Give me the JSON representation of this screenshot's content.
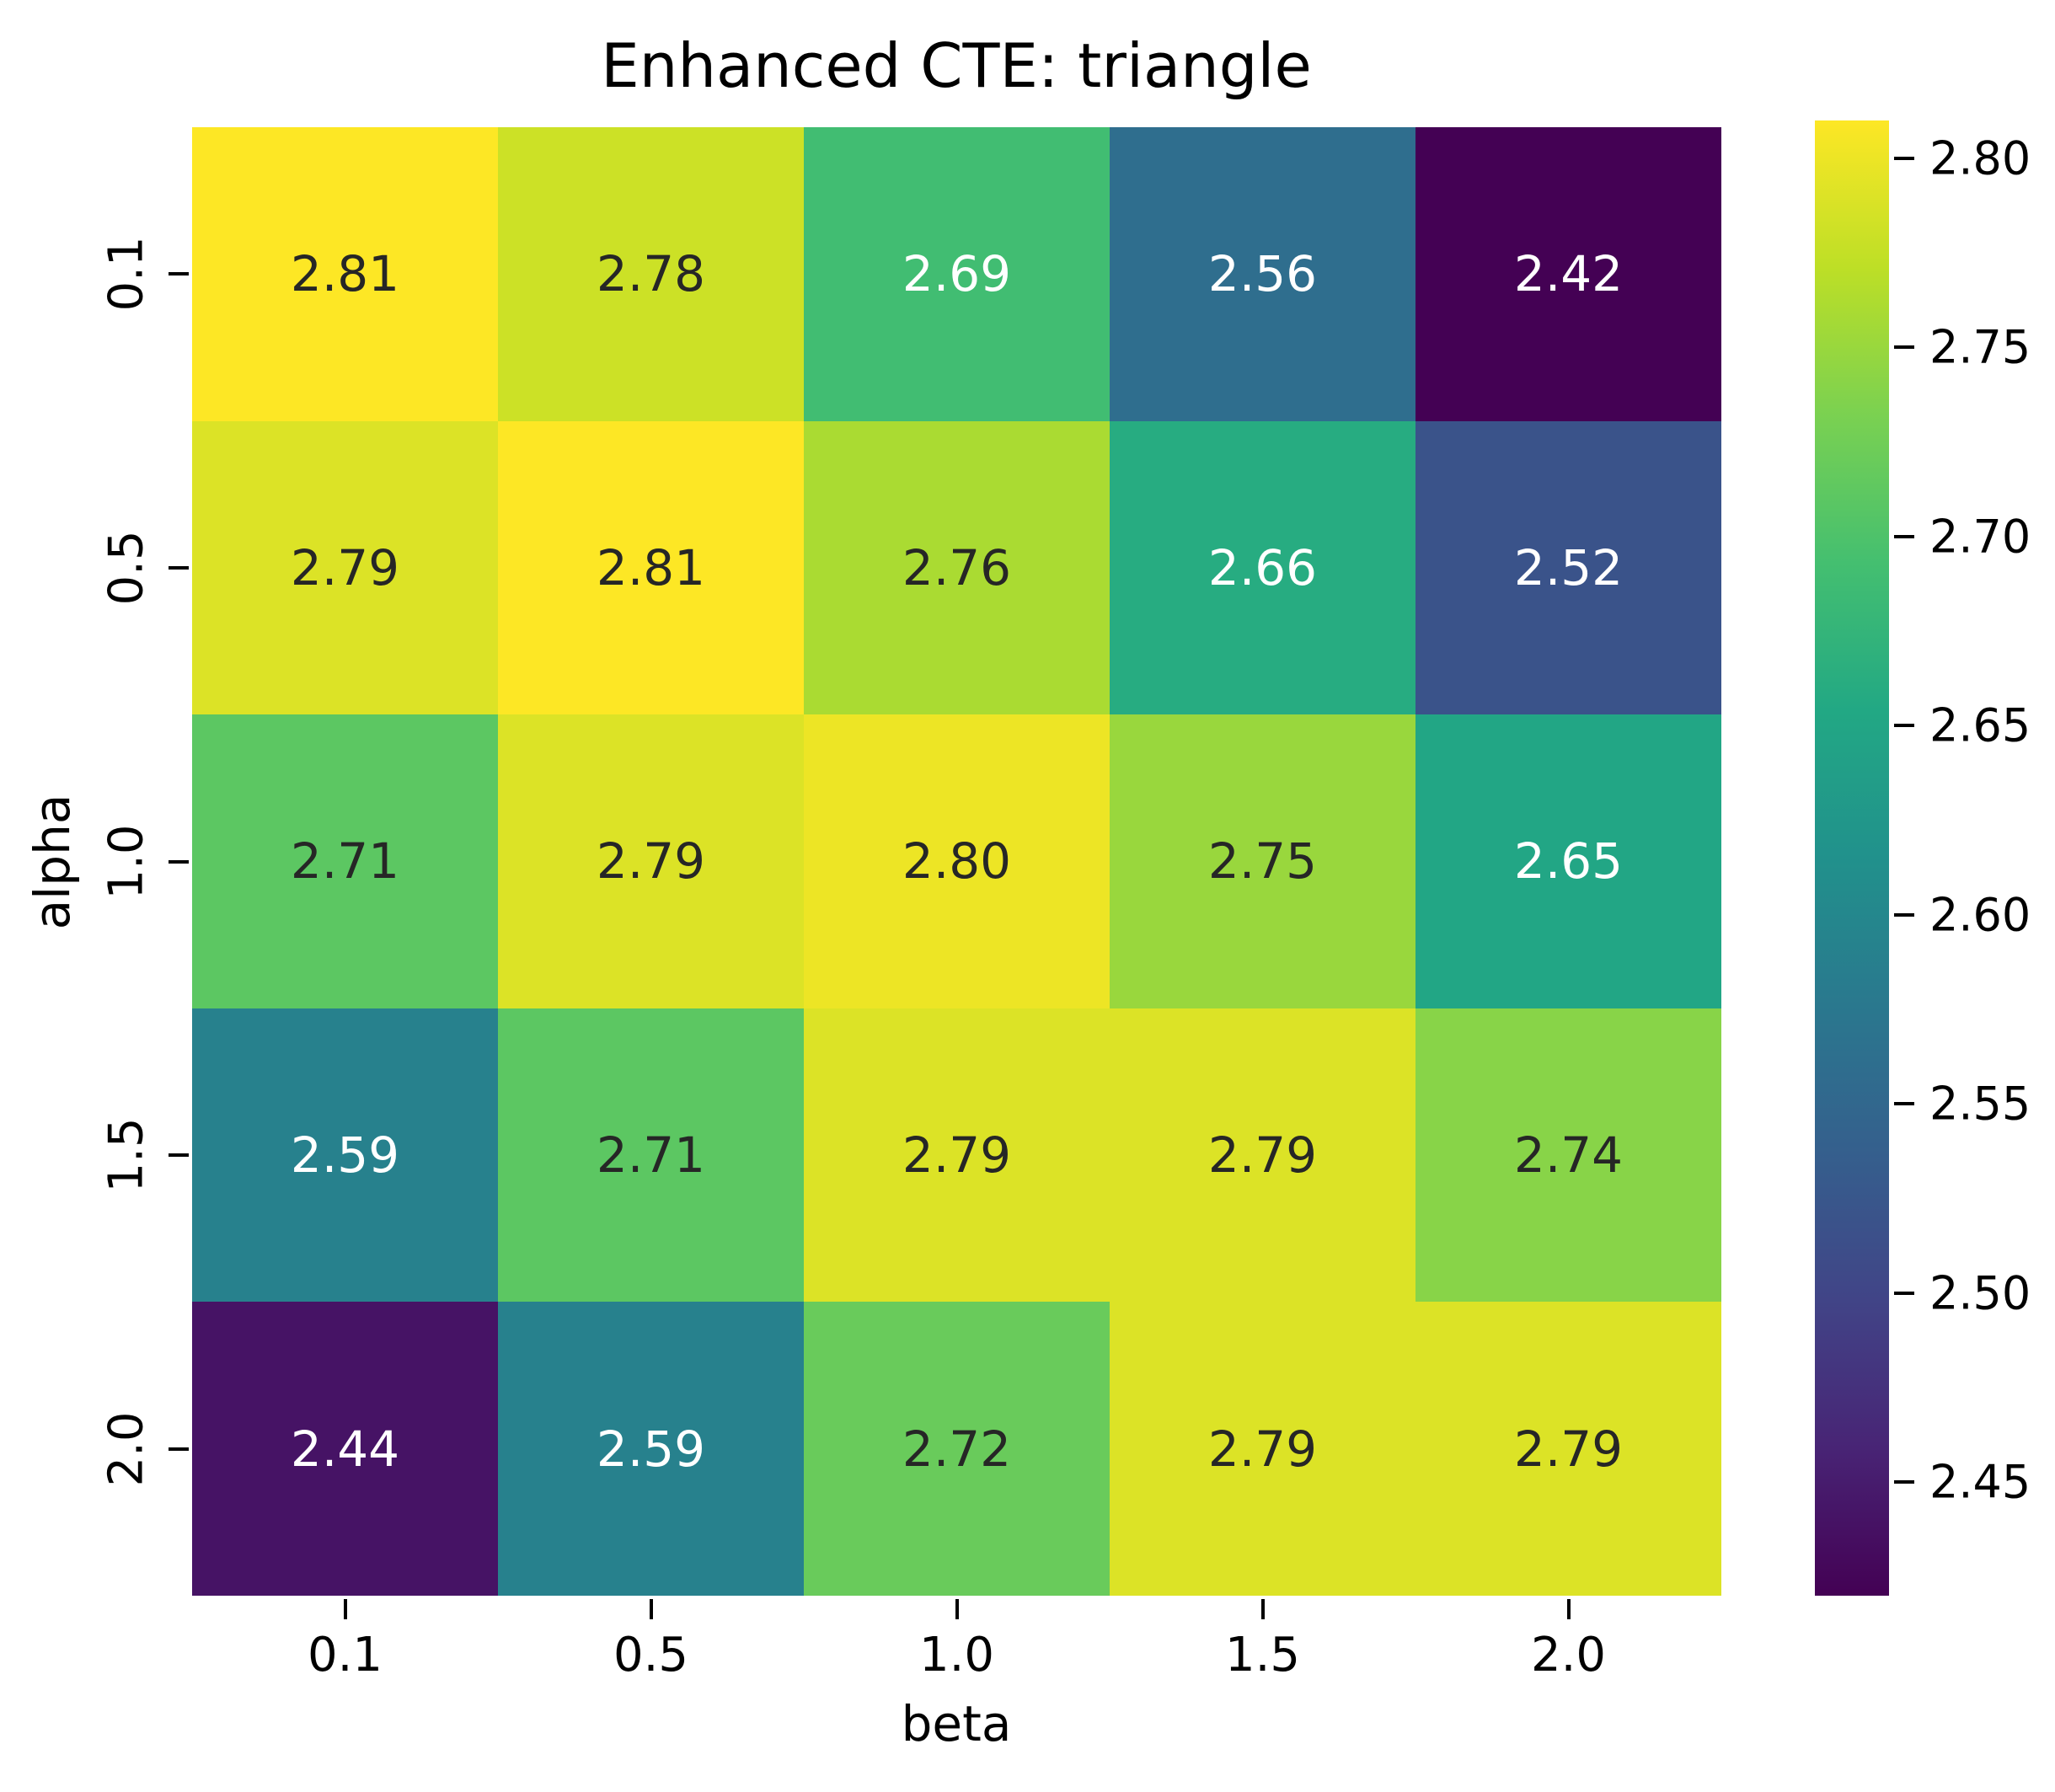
{
  "chart_data": {
    "type": "heatmap",
    "title": "Enhanced CTE: triangle",
    "xlabel": "beta",
    "ylabel": "alpha",
    "x_tick_labels": [
      "0.1",
      "0.5",
      "1.0",
      "1.5",
      "2.0"
    ],
    "y_tick_labels": [
      "0.1",
      "0.5",
      "1.0",
      "1.5",
      "2.0"
    ],
    "values": [
      [
        2.81,
        2.78,
        2.69,
        2.56,
        2.42
      ],
      [
        2.79,
        2.81,
        2.76,
        2.66,
        2.52
      ],
      [
        2.71,
        2.79,
        2.8,
        2.75,
        2.65
      ],
      [
        2.59,
        2.71,
        2.79,
        2.79,
        2.74
      ],
      [
        2.44,
        2.59,
        2.72,
        2.79,
        2.79
      ]
    ],
    "cell_labels": [
      [
        "2.81",
        "2.78",
        "2.69",
        "2.56",
        "2.42"
      ],
      [
        "2.79",
        "2.81",
        "2.76",
        "2.66",
        "2.52"
      ],
      [
        "2.71",
        "2.79",
        "2.80",
        "2.75",
        "2.65"
      ],
      [
        "2.59",
        "2.71",
        "2.79",
        "2.79",
        "2.74"
      ],
      [
        "2.44",
        "2.59",
        "2.72",
        "2.79",
        "2.79"
      ]
    ],
    "vmin": 2.42,
    "vmax": 2.81,
    "colormap": "viridis",
    "viridis_stops": [
      "#440154",
      "#482475",
      "#414487",
      "#355f8d",
      "#2a788e",
      "#21918c",
      "#22a884",
      "#44bf70",
      "#7ad151",
      "#bddf26",
      "#fde725"
    ],
    "colorbar_tick_values": [
      2.8,
      2.75,
      2.7,
      2.65,
      2.6,
      2.55,
      2.5,
      2.45
    ],
    "colorbar_tick_labels": [
      "2.80",
      "2.75",
      "2.70",
      "2.65",
      "2.60",
      "2.55",
      "2.50",
      "2.45"
    ],
    "legend_position": "right-colorbar",
    "grid": false,
    "colors": {
      "annotation_dark": "#262626",
      "annotation_light": "#ffffff",
      "axis_text": "#000000",
      "background": "#ffffff"
    }
  }
}
